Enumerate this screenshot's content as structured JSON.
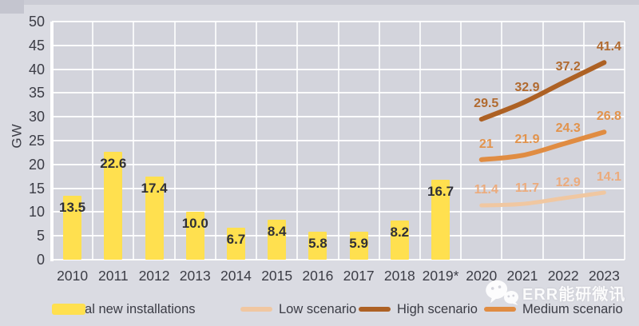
{
  "page": {
    "background": "#dadbe2",
    "plot_background": "#d3d4dc",
    "gridline_color": "#ffffff"
  },
  "chart_data": {
    "type": "bar+line",
    "title": "",
    "xlabel": "",
    "ylabel": "GW",
    "ylim": [
      0,
      50
    ],
    "y_tick_step": 5,
    "y_ticks": [
      "0",
      "5",
      "10",
      "15",
      "20",
      "25",
      "30",
      "35",
      "40",
      "45",
      "50"
    ],
    "grid": true,
    "legend_position": "bottom",
    "categories": [
      "2010",
      "2011",
      "2012",
      "2013",
      "2014",
      "2015",
      "2016",
      "2017",
      "2018",
      "2019*",
      "2020",
      "2021",
      "2022",
      "2023"
    ],
    "bar_series": {
      "name": "Actual new installations",
      "color": "#ffe04f",
      "label_color": "#2f3037",
      "categories": [
        "2010",
        "2011",
        "2012",
        "2013",
        "2014",
        "2015",
        "2016",
        "2017",
        "2018",
        "2019*"
      ],
      "values": [
        13.5,
        22.6,
        17.4,
        10.0,
        6.7,
        8.4,
        5.8,
        5.9,
        8.2,
        16.7
      ],
      "labels": [
        "13.5",
        "22.6",
        "17.4",
        "10.0",
        "6.7",
        "8.4",
        "5.8",
        "5.9",
        "8.2",
        "16.7"
      ]
    },
    "line_series": [
      {
        "name": "Low scenario",
        "color": "#f0c7a1",
        "label_color": "#ecab7c",
        "stroke_width": 5,
        "categories": [
          "2020",
          "2021",
          "2022",
          "2023"
        ],
        "values": [
          11.4,
          11.7,
          12.9,
          14.1
        ],
        "labels": [
          "11.4",
          "11.7",
          "12.9",
          "14.1"
        ]
      },
      {
        "name": "High scenario",
        "color": "#ad6124",
        "label_color": "#b16a2f",
        "stroke_width": 6,
        "categories": [
          "2020",
          "2021",
          "2022",
          "2023"
        ],
        "values": [
          29.5,
          32.9,
          37.2,
          41.4
        ],
        "labels": [
          "29.5",
          "32.9",
          "37.2",
          "41.4"
        ]
      },
      {
        "name": "Medium scenario",
        "color": "#e08c42",
        "label_color": "#e2934c",
        "stroke_width": 6,
        "categories": [
          "2020",
          "2021",
          "2022",
          "2023"
        ],
        "values": [
          21,
          21.9,
          24.3,
          26.8
        ],
        "labels": [
          "21",
          "21.9",
          "24.3",
          "26.8"
        ]
      }
    ]
  },
  "legend": {
    "items": [
      {
        "label": "Actual new installations",
        "swatch": "bar",
        "color": "#ffe04f"
      },
      {
        "label": "Low scenario",
        "swatch": "line",
        "color": "#f0c7a1"
      },
      {
        "label": "High scenario",
        "swatch": "line",
        "color": "#ad6124"
      },
      {
        "label": "Medium scenario",
        "swatch": "line",
        "color": "#e08c42"
      }
    ]
  },
  "watermark": {
    "text": "ERR能研微讯",
    "icon": "wechat-icon"
  }
}
